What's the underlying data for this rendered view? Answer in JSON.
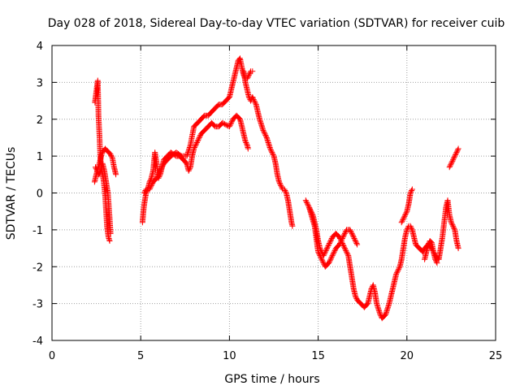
{
  "chart_data": {
    "type": "scatter",
    "title": "Day 028 of 2018, Sidereal Day-to-day VTEC variation (SDTVAR) for receiver cuib",
    "xlabel": "GPS time / hours",
    "ylabel": "SDTVAR / TECUs",
    "xlim": [
      0,
      25
    ],
    "ylim": [
      -4,
      4
    ],
    "xticks": [
      0,
      5,
      10,
      15,
      20,
      25
    ],
    "yticks": [
      -4,
      -3,
      -2,
      -1,
      0,
      1,
      2,
      3,
      4
    ],
    "grid": true,
    "marker": "+",
    "series": [
      {
        "name": "SDTVAR",
        "color": "#ff0000",
        "segments": [
          [
            [
              2.42,
              2.45
            ],
            [
              2.5,
              2.75
            ],
            [
              2.55,
              2.95
            ],
            [
              2.58,
              3.05
            ],
            [
              2.62,
              2.1
            ],
            [
              2.68,
              1.5
            ],
            [
              2.72,
              1.0
            ],
            [
              2.78,
              0.7
            ],
            [
              2.85,
              0.5
            ],
            [
              2.92,
              0.3
            ],
            [
              3.0,
              -0.1
            ],
            [
              3.05,
              -0.5
            ],
            [
              3.1,
              -0.9
            ],
            [
              3.18,
              -1.2
            ],
            [
              3.25,
              -1.3
            ]
          ],
          [
            [
              2.4,
              0.3
            ],
            [
              2.5,
              0.5
            ],
            [
              2.6,
              0.7
            ],
            [
              2.7,
              0.85
            ],
            [
              2.8,
              1.05
            ],
            [
              2.9,
              1.15
            ],
            [
              3.0,
              1.2
            ],
            [
              3.1,
              1.15
            ],
            [
              3.2,
              1.1
            ],
            [
              3.3,
              1.05
            ],
            [
              3.4,
              0.95
            ],
            [
              3.5,
              0.7
            ],
            [
              3.6,
              0.5
            ]
          ],
          [
            [
              2.45,
              0.7
            ],
            [
              2.55,
              0.6
            ],
            [
              2.65,
              0.5
            ],
            [
              2.75,
              0.6
            ],
            [
              2.85,
              0.8
            ],
            [
              2.95,
              0.6
            ],
            [
              3.05,
              0.3
            ],
            [
              3.15,
              0.0
            ],
            [
              3.25,
              -0.7
            ],
            [
              3.3,
              -1.1
            ]
          ],
          [
            [
              5.1,
              -0.8
            ],
            [
              5.15,
              -0.5
            ],
            [
              5.2,
              -0.3
            ],
            [
              5.3,
              0.0
            ],
            [
              5.4,
              0.1
            ],
            [
              5.5,
              0.3
            ],
            [
              5.6,
              0.4
            ],
            [
              5.7,
              0.6
            ],
            [
              5.75,
              0.85
            ],
            [
              5.8,
              1.1
            ],
            [
              5.9,
              0.8
            ],
            [
              6.0,
              0.4
            ],
            [
              6.1,
              0.5
            ],
            [
              6.2,
              0.7
            ],
            [
              6.3,
              0.9
            ],
            [
              6.5,
              1.0
            ],
            [
              6.7,
              1.1
            ],
            [
              7.0,
              1.0
            ],
            [
              7.2,
              1.0
            ],
            [
              7.4,
              0.9
            ],
            [
              7.6,
              0.8
            ],
            [
              7.7,
              0.6
            ],
            [
              7.8,
              0.7
            ],
            [
              7.9,
              1.0
            ],
            [
              8.0,
              1.2
            ],
            [
              8.2,
              1.4
            ],
            [
              8.4,
              1.6
            ],
            [
              8.6,
              1.7
            ],
            [
              8.8,
              1.8
            ],
            [
              9.0,
              1.9
            ],
            [
              9.2,
              1.8
            ],
            [
              9.4,
              1.8
            ],
            [
              9.6,
              1.9
            ],
            [
              9.8,
              1.85
            ],
            [
              10.0,
              1.8
            ],
            [
              10.2,
              2.0
            ],
            [
              10.4,
              2.1
            ],
            [
              10.6,
              2.0
            ],
            [
              10.7,
              1.8
            ],
            [
              10.8,
              1.6
            ],
            [
              10.9,
              1.4
            ],
            [
              11.0,
              1.3
            ],
            [
              11.05,
              1.2
            ]
          ],
          [
            [
              5.2,
              0.0
            ],
            [
              5.3,
              0.1
            ],
            [
              5.5,
              0.1
            ],
            [
              5.7,
              0.3
            ],
            [
              5.9,
              0.4
            ],
            [
              6.1,
              0.6
            ],
            [
              6.3,
              0.8
            ],
            [
              6.5,
              0.9
            ],
            [
              6.7,
              1.0
            ],
            [
              7.0,
              1.1
            ],
            [
              7.3,
              1.0
            ],
            [
              7.6,
              1.0
            ],
            [
              7.8,
              1.3
            ],
            [
              8.0,
              1.8
            ],
            [
              8.2,
              1.9
            ],
            [
              8.4,
              2.0
            ],
            [
              8.6,
              2.1
            ],
            [
              8.8,
              2.1
            ],
            [
              9.0,
              2.2
            ],
            [
              9.2,
              2.3
            ],
            [
              9.4,
              2.4
            ],
            [
              9.6,
              2.4
            ],
            [
              9.8,
              2.5
            ],
            [
              10.0,
              2.6
            ],
            [
              10.1,
              2.8
            ],
            [
              10.2,
              3.0
            ],
            [
              10.3,
              3.2
            ],
            [
              10.4,
              3.4
            ],
            [
              10.5,
              3.6
            ],
            [
              10.6,
              3.65
            ],
            [
              10.7,
              3.4
            ],
            [
              10.8,
              3.2
            ],
            [
              10.9,
              3.1
            ],
            [
              11.0,
              3.1
            ],
            [
              11.1,
              3.2
            ],
            [
              11.2,
              3.3
            ],
            [
              11.3,
              3.3
            ]
          ],
          [
            [
              10.8,
              3.3
            ],
            [
              10.9,
              3.0
            ],
            [
              11.0,
              2.8
            ],
            [
              11.1,
              2.6
            ],
            [
              11.2,
              2.5
            ],
            [
              11.3,
              2.6
            ],
            [
              11.4,
              2.5
            ],
            [
              11.5,
              2.4
            ],
            [
              11.7,
              2.0
            ],
            [
              11.9,
              1.7
            ],
            [
              12.1,
              1.5
            ],
            [
              12.3,
              1.2
            ],
            [
              12.5,
              1.0
            ],
            [
              12.6,
              0.8
            ],
            [
              12.7,
              0.5
            ],
            [
              12.8,
              0.3
            ],
            [
              12.9,
              0.2
            ],
            [
              13.0,
              0.1
            ],
            [
              13.1,
              0.1
            ],
            [
              13.2,
              0.0
            ],
            [
              13.3,
              -0.2
            ],
            [
              13.4,
              -0.5
            ],
            [
              13.5,
              -0.8
            ],
            [
              13.55,
              -0.9
            ]
          ],
          [
            [
              14.3,
              -0.2
            ],
            [
              14.4,
              -0.3
            ],
            [
              14.5,
              -0.4
            ],
            [
              14.6,
              -0.5
            ],
            [
              14.7,
              -0.6
            ],
            [
              14.8,
              -0.8
            ],
            [
              14.9,
              -1.0
            ],
            [
              15.0,
              -1.3
            ],
            [
              15.1,
              -1.5
            ],
            [
              15.2,
              -1.6
            ],
            [
              15.3,
              -1.7
            ],
            [
              15.4,
              -1.6
            ],
            [
              15.6,
              -1.4
            ],
            [
              15.8,
              -1.2
            ],
            [
              16.0,
              -1.1
            ],
            [
              16.2,
              -1.2
            ],
            [
              16.4,
              -1.4
            ],
            [
              16.5,
              -1.5
            ],
            [
              16.7,
              -1.7
            ],
            [
              16.8,
              -2.0
            ],
            [
              16.9,
              -2.3
            ],
            [
              17.0,
              -2.6
            ],
            [
              17.1,
              -2.8
            ],
            [
              17.2,
              -2.9
            ],
            [
              17.4,
              -3.0
            ],
            [
              17.6,
              -3.1
            ],
            [
              17.8,
              -3.0
            ],
            [
              17.9,
              -2.8
            ],
            [
              18.0,
              -2.6
            ],
            [
              18.1,
              -2.5
            ],
            [
              18.2,
              -2.7
            ],
            [
              18.3,
              -3.0
            ],
            [
              18.5,
              -3.3
            ],
            [
              18.6,
              -3.4
            ],
            [
              18.8,
              -3.3
            ],
            [
              19.0,
              -3.0
            ],
            [
              19.1,
              -2.8
            ],
            [
              19.2,
              -2.6
            ],
            [
              19.3,
              -2.4
            ],
            [
              19.4,
              -2.2
            ],
            [
              19.5,
              -2.1
            ],
            [
              19.6,
              -2.0
            ],
            [
              19.7,
              -1.8
            ],
            [
              19.8,
              -1.5
            ],
            [
              19.9,
              -1.2
            ],
            [
              20.0,
              -1.0
            ],
            [
              20.1,
              -0.9
            ],
            [
              20.2,
              -0.9
            ],
            [
              20.3,
              -1.0
            ],
            [
              20.4,
              -1.2
            ],
            [
              20.5,
              -1.4
            ],
            [
              20.7,
              -1.5
            ],
            [
              20.9,
              -1.6
            ],
            [
              21.0,
              -1.5
            ],
            [
              21.2,
              -1.4
            ],
            [
              21.4,
              -1.5
            ],
            [
              21.6,
              -1.7
            ],
            [
              21.8,
              -1.8
            ],
            [
              21.9,
              -1.5
            ],
            [
              22.0,
              -1.2
            ],
            [
              22.1,
              -0.8
            ],
            [
              22.2,
              -0.4
            ],
            [
              22.3,
              -0.2
            ],
            [
              22.4,
              -0.6
            ],
            [
              22.5,
              -0.8
            ],
            [
              22.6,
              -0.9
            ],
            [
              22.7,
              -1.0
            ],
            [
              22.8,
              -1.3
            ],
            [
              22.9,
              -1.5
            ]
          ],
          [
            [
              14.5,
              -0.4
            ],
            [
              14.8,
              -0.9
            ],
            [
              15.0,
              -1.6
            ],
            [
              15.2,
              -1.8
            ],
            [
              15.4,
              -2.0
            ],
            [
              15.6,
              -1.9
            ],
            [
              15.8,
              -1.7
            ],
            [
              16.0,
              -1.5
            ],
            [
              16.2,
              -1.4
            ],
            [
              16.4,
              -1.2
            ],
            [
              16.5,
              -1.1
            ],
            [
              16.6,
              -1.0
            ],
            [
              16.8,
              -1.0
            ],
            [
              17.0,
              -1.2
            ],
            [
              17.1,
              -1.3
            ],
            [
              17.2,
              -1.4
            ]
          ],
          [
            [
              19.7,
              -0.8
            ],
            [
              19.8,
              -0.7
            ],
            [
              19.9,
              -0.6
            ],
            [
              20.0,
              -0.5
            ],
            [
              20.1,
              -0.3
            ],
            [
              20.2,
              0.0
            ],
            [
              20.3,
              0.1
            ]
          ],
          [
            [
              21.0,
              -1.8
            ],
            [
              21.1,
              -1.6
            ],
            [
              21.2,
              -1.4
            ],
            [
              21.3,
              -1.3
            ],
            [
              21.4,
              -1.35
            ],
            [
              21.5,
              -1.6
            ],
            [
              21.6,
              -1.8
            ],
            [
              21.7,
              -1.9
            ]
          ],
          [
            [
              22.4,
              0.7
            ],
            [
              22.5,
              0.8
            ],
            [
              22.6,
              0.9
            ],
            [
              22.7,
              1.0
            ],
            [
              22.8,
              1.1
            ],
            [
              22.9,
              1.2
            ]
          ]
        ]
      }
    ]
  }
}
